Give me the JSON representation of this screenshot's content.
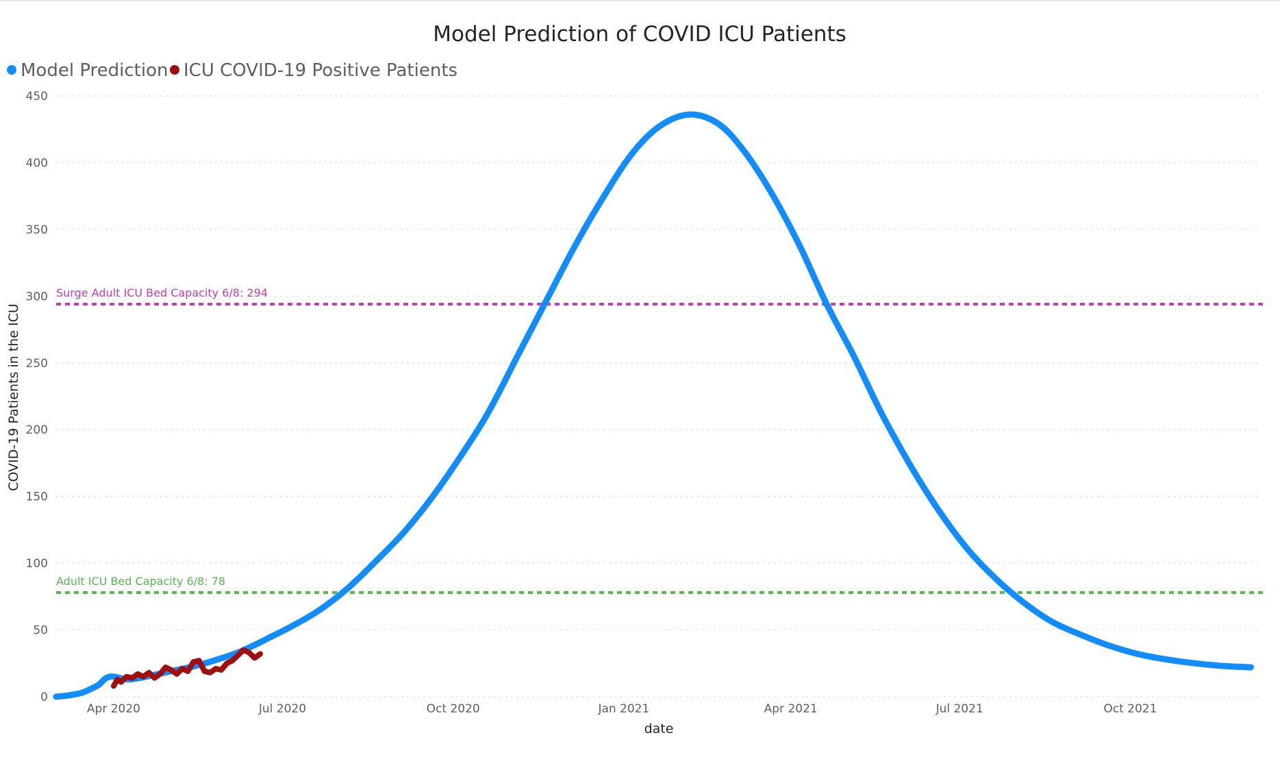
{
  "chart_data": {
    "type": "line",
    "title": "Model Prediction of COVID ICU Patients",
    "xlabel": "date",
    "ylabel": "COVID-19 Patients in the ICU",
    "ylim": [
      0,
      450
    ],
    "yticks": [
      0,
      50,
      100,
      150,
      200,
      250,
      300,
      350,
      400,
      450
    ],
    "xlim": [
      "2020-03-01",
      "2021-12-10"
    ],
    "xticks": [
      {
        "date": "2020-04-01",
        "label": "Apr 2020"
      },
      {
        "date": "2020-07-01",
        "label": "Jul 2020"
      },
      {
        "date": "2020-10-01",
        "label": "Oct 2020"
      },
      {
        "date": "2021-01-01",
        "label": "Jan 2021"
      },
      {
        "date": "2021-04-01",
        "label": "Apr 2021"
      },
      {
        "date": "2021-07-01",
        "label": "Jul 2021"
      },
      {
        "date": "2021-10-01",
        "label": "Oct 2021"
      }
    ],
    "grid": true,
    "legend_position": "top-left",
    "series": [
      {
        "name": "Model Prediction",
        "color": "#118dff",
        "x": [
          "2020-03-01",
          "2020-03-08",
          "2020-03-15",
          "2020-03-20",
          "2020-03-24",
          "2020-03-28",
          "2020-04-01",
          "2020-04-08",
          "2020-04-15",
          "2020-04-25",
          "2020-05-05",
          "2020-05-15",
          "2020-05-25",
          "2020-06-05",
          "2020-06-15",
          "2020-06-25",
          "2020-07-05",
          "2020-07-20",
          "2020-08-05",
          "2020-08-20",
          "2020-09-05",
          "2020-09-20",
          "2020-10-05",
          "2020-10-20",
          "2020-11-05",
          "2020-11-20",
          "2020-12-05",
          "2020-12-20",
          "2021-01-05",
          "2021-01-20",
          "2021-02-05",
          "2021-02-20",
          "2021-03-05",
          "2021-03-20",
          "2021-04-05",
          "2021-04-20",
          "2021-05-05",
          "2021-05-20",
          "2021-06-05",
          "2021-06-20",
          "2021-07-05",
          "2021-07-20",
          "2021-08-05",
          "2021-08-20",
          "2021-09-05",
          "2021-09-20",
          "2021-10-05",
          "2021-10-20",
          "2021-11-05",
          "2021-11-20",
          "2021-12-05"
        ],
        "values": [
          0,
          1,
          3,
          6,
          9,
          14,
          15,
          13,
          14,
          17,
          20,
          23,
          27,
          32,
          38,
          45,
          52,
          64,
          81,
          101,
          124,
          150,
          180,
          213,
          256,
          296,
          336,
          372,
          406,
          427,
          436,
          430,
          412,
          381,
          340,
          295,
          255,
          212,
          172,
          139,
          111,
          89,
          70,
          56,
          46,
          38,
          32,
          28,
          25,
          23,
          22
        ]
      },
      {
        "name": "ICU COVID-19 Positive Patients",
        "color": "#a00e0e",
        "x": [
          "2020-04-01",
          "2020-04-03",
          "2020-04-05",
          "2020-04-08",
          "2020-04-11",
          "2020-04-14",
          "2020-04-17",
          "2020-04-20",
          "2020-04-23",
          "2020-04-26",
          "2020-04-29",
          "2020-05-02",
          "2020-05-05",
          "2020-05-08",
          "2020-05-11",
          "2020-05-14",
          "2020-05-17",
          "2020-05-20",
          "2020-05-23",
          "2020-05-26",
          "2020-05-29",
          "2020-06-01",
          "2020-06-04",
          "2020-06-07",
          "2020-06-10",
          "2020-06-13",
          "2020-06-16",
          "2020-06-19"
        ],
        "values": [
          8,
          13,
          11,
          15,
          14,
          17,
          15,
          18,
          14,
          17,
          22,
          20,
          17,
          21,
          19,
          26,
          27,
          19,
          18,
          21,
          20,
          25,
          27,
          31,
          35,
          33,
          29,
          32
        ]
      }
    ],
    "reference_lines": [
      {
        "label": "Surge Adult ICU Bed Capacity 6/8: 294",
        "value": 294,
        "color": "#c33cb9"
      },
      {
        "label": "Adult ICU Bed Capacity 6/8: 78",
        "value": 78,
        "color": "#55b94e"
      }
    ]
  }
}
